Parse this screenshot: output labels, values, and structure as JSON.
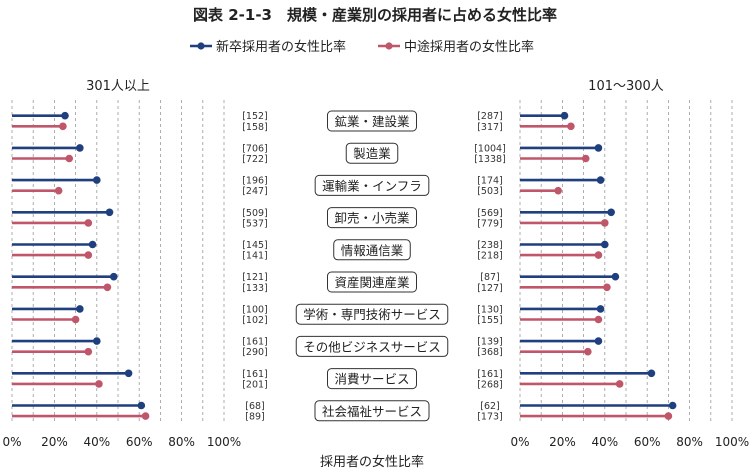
{
  "chart_data": {
    "type": "lollipop",
    "title": "図表 2-1-3　規模・産業別の採用者に占める女性比率",
    "xlabel": "採用者の女性比率",
    "xlim": [
      0,
      100
    ],
    "xticks": [
      "0%",
      "20%",
      "40%",
      "60%",
      "80%",
      "100%"
    ],
    "grid": true,
    "legend": {
      "position": "top-center",
      "items": [
        {
          "key": "new_grad",
          "label": "新卒採用者の女性比率",
          "color": "#1f3f7f"
        },
        {
          "key": "mid_career",
          "label": "中途採用者の女性比率",
          "color": "#c0566a"
        }
      ]
    },
    "categories": [
      "鉱業・建設業",
      "製造業",
      "運輸業・インフラ",
      "卸売・小売業",
      "情報通信業",
      "資産関連産業",
      "学術・専門技術サービス",
      "その他ビジネスサービス",
      "消費サービス",
      "社会福祉サービス"
    ],
    "panels": [
      {
        "title": "301人以上",
        "series": [
          {
            "name": "新卒採用者の女性比率",
            "values": [
              25,
              32,
              40,
              46,
              38,
              48,
              32,
              40,
              55,
              61
            ]
          },
          {
            "name": "中途採用者の女性比率",
            "values": [
              24,
              27,
              22,
              36,
              36,
              45,
              30,
              36,
              41,
              63
            ]
          }
        ],
        "counts_new": [
          "[152]",
          "[706]",
          "[196]",
          "[509]",
          "[145]",
          "[121]",
          "[100]",
          "[161]",
          "[161]",
          "[68]"
        ],
        "counts_mid": [
          "[158]",
          "[722]",
          "[247]",
          "[537]",
          "[141]",
          "[133]",
          "[102]",
          "[290]",
          "[201]",
          "[89]"
        ]
      },
      {
        "title": "101～300人",
        "series": [
          {
            "name": "新卒採用者の女性比率",
            "values": [
              21,
              37,
              38,
              43,
              40,
              45,
              38,
              37,
              62,
              72
            ]
          },
          {
            "name": "中途採用者の女性比率",
            "values": [
              24,
              31,
              18,
              40,
              37,
              41,
              37,
              32,
              47,
              70
            ]
          }
        ],
        "counts_new": [
          "[287]",
          "[1004]",
          "[174]",
          "[569]",
          "[238]",
          "[87]",
          "[130]",
          "[139]",
          "[161]",
          "[62]"
        ],
        "counts_mid": [
          "[317]",
          "[1338]",
          "[503]",
          "[779]",
          "[218]",
          "[127]",
          "[155]",
          "[368]",
          "[268]",
          "[173]"
        ]
      }
    ]
  }
}
